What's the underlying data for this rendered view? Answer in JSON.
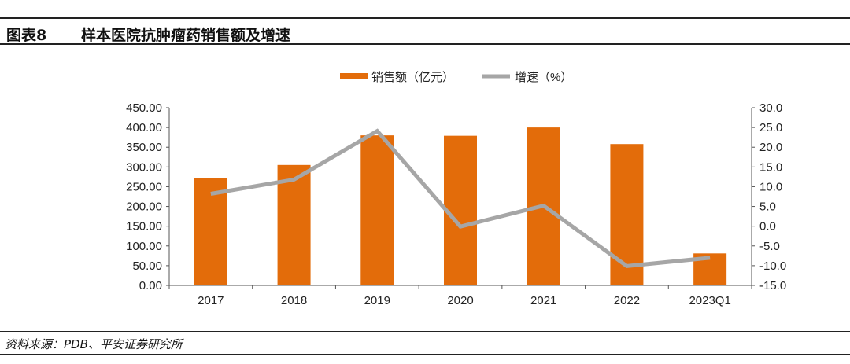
{
  "header": {
    "figure_label": "图表8",
    "title": "样本医院抗肿瘤药销售额及增速"
  },
  "source": "资料来源：PDB、平安证券研究所",
  "chart_data": {
    "type": "bar+line",
    "categories": [
      "2017",
      "2018",
      "2019",
      "2020",
      "2021",
      "2022",
      "2023Q1"
    ],
    "series": [
      {
        "name": "销售额（亿元）",
        "type": "bar",
        "axis": "left",
        "color": "#E36C0A",
        "values": [
          272,
          305,
          380,
          379,
          400,
          358,
          81
        ]
      },
      {
        "name": "增速（%）",
        "type": "line",
        "axis": "right",
        "color": "#A6A6A6",
        "values": [
          8.2,
          11.8,
          24.1,
          -0.1,
          5.2,
          -10.1,
          -8.0
        ]
      }
    ],
    "left_axis": {
      "ylim": [
        0,
        450
      ],
      "ticks": [
        "0.00",
        "50.00",
        "100.00",
        "150.00",
        "200.00",
        "250.00",
        "300.00",
        "350.00",
        "400.00",
        "450.00"
      ]
    },
    "right_axis": {
      "ylim": [
        -15,
        30
      ],
      "ticks": [
        "-15.0",
        "-10.0",
        "-5.0",
        "0.0",
        "5.0",
        "10.0",
        "15.0",
        "20.0",
        "25.0",
        "30.0"
      ]
    },
    "legend": "top-right",
    "grid": false
  }
}
